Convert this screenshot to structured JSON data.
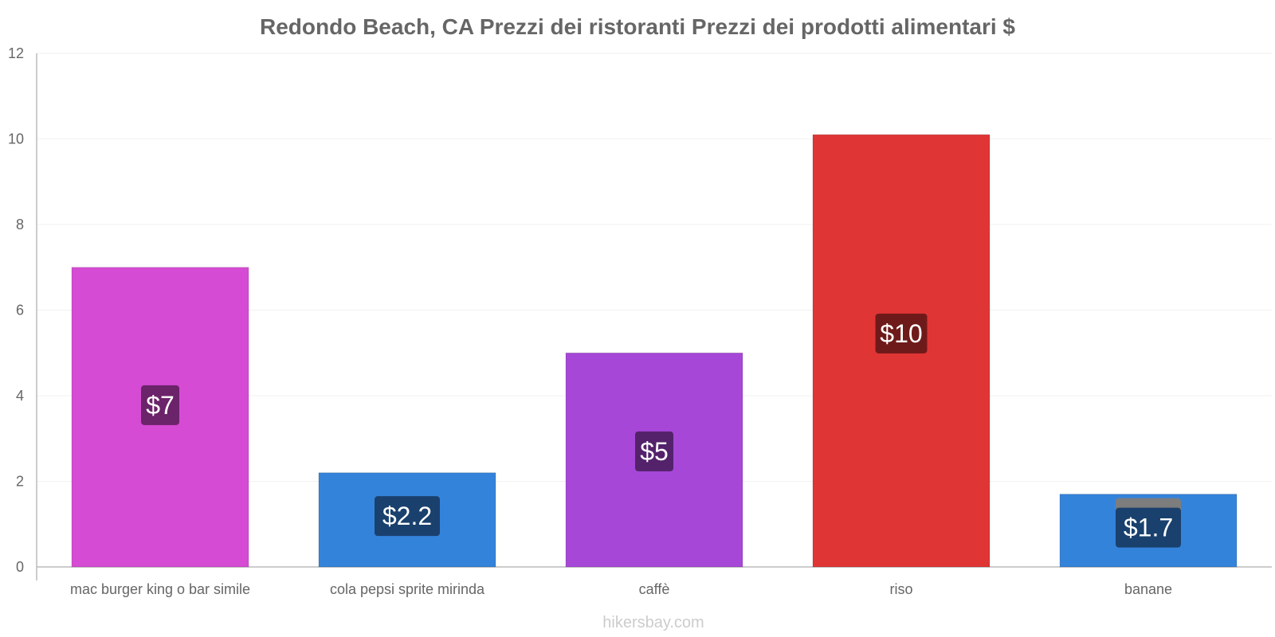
{
  "chart_data": {
    "type": "bar",
    "title": "Redondo Beach, CA Prezzi dei ristoranti Prezzi dei prodotti alimentari $",
    "categories": [
      "mac burger king o bar simile",
      "cola pepsi sprite mirinda",
      "caffè",
      "riso",
      "banane"
    ],
    "values": [
      7,
      2.2,
      5,
      10.1,
      1.7
    ],
    "data_labels": [
      "$7",
      "$2.2",
      "$5",
      "$10",
      "$1.7"
    ],
    "bar_colors": [
      "#d64bd3",
      "#3483db",
      "#a647d8",
      "#e03535",
      "#3483db"
    ],
    "label_bg_colors": [
      "#6b2369",
      "#1a416d",
      "#53226b",
      "#6f1a1a",
      "#1a416d"
    ],
    "ylim": [
      0,
      12
    ],
    "yticks": [
      0,
      2,
      4,
      6,
      8,
      10,
      12
    ],
    "xlabel": "",
    "ylabel": "",
    "grid": true,
    "watermark": "hikersbay.com"
  }
}
